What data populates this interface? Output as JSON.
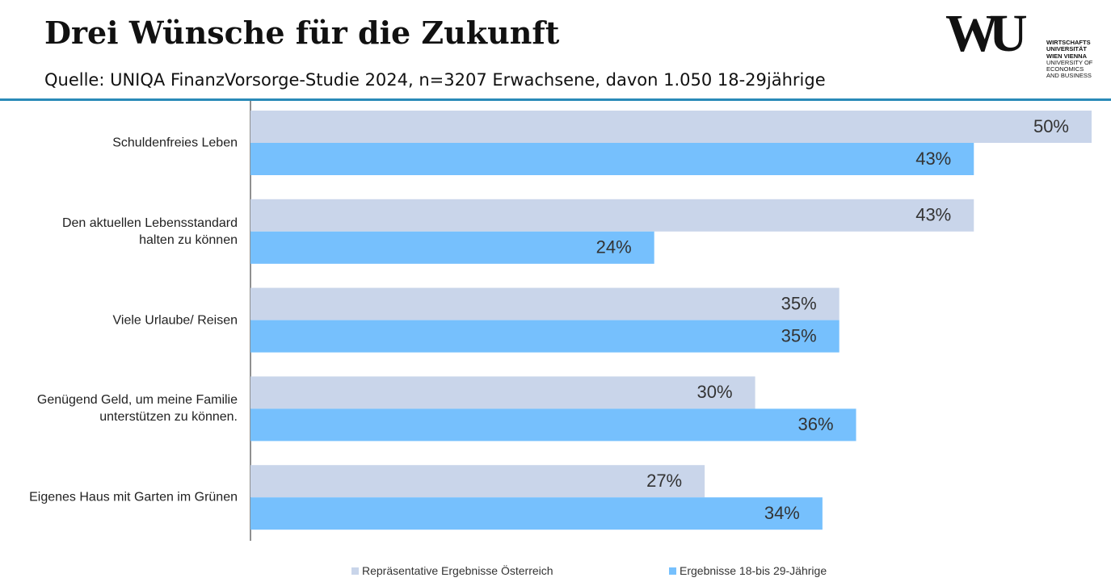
{
  "header": {
    "title": "Drei Wünsche für die Zukunft",
    "subtitle": "Quelle: UNIQA FinanzVorsorge-Studie 2024, n=3207 Erwachsene, davon 1.050 18-29jährige",
    "logo": {
      "mark": "WU",
      "lines": [
        "WIRTSCHAFTS",
        "UNIVERSITÄT",
        "WIEN VIENNA",
        "UNIVERSITY OF",
        "ECONOMICS",
        "AND BUSINESS"
      ]
    }
  },
  "chart_data": {
    "type": "bar",
    "orientation": "horizontal",
    "categories": [
      "Schuldenfreies Leben",
      "Den aktuellen Lebensstandard\nhalten zu können",
      "Viele Urlaube/ Reisen",
      "Genügend Geld, um meine Familie\nunterstützen zu können.",
      "Eigenes Haus mit Garten im Grünen"
    ],
    "series": [
      {
        "name": "Repräsentative Ergebnisse Österreich",
        "color": "#c9d5ea",
        "values": [
          50,
          43,
          35,
          30,
          27
        ],
        "value_labels": [
          "50%",
          "43%",
          "35%",
          "30%",
          "27%"
        ]
      },
      {
        "name": "Ergebnisse 18-bis 29-Jährige",
        "color": "#76c0fd",
        "values": [
          43,
          24,
          35,
          36,
          34
        ],
        "value_labels": [
          "43%",
          "24%",
          "35%",
          "36%",
          "34%"
        ]
      }
    ],
    "xlim": [
      0,
      50
    ],
    "legend": "bottom"
  }
}
